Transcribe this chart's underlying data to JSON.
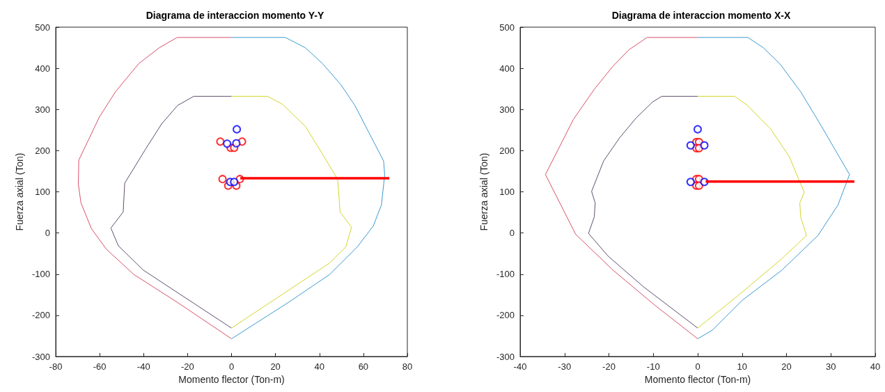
{
  "chart_data": [
    {
      "type": "line",
      "title": "Diagrama de interaccion momento Y-Y",
      "xlabel": "Momento flector (Ton-m)",
      "ylabel": "Fuerza axial (Ton)",
      "xlim": [
        -80,
        80
      ],
      "xticks": [
        -80,
        -60,
        -40,
        -20,
        0,
        20,
        40,
        60,
        80
      ],
      "ylim": [
        -300,
        500
      ],
      "yticks": [
        -300,
        -200,
        -100,
        0,
        100,
        200,
        300,
        400,
        500
      ],
      "marker": "none",
      "line_style": "solid",
      "series": [
        {
          "color": "#d9506a",
          "x": [
            0,
            -24.7,
            -32.9,
            -42.3,
            -52.8,
            -60.1,
            -69.5,
            -69.7,
            -68.5,
            -63.8,
            -57,
            -44.4,
            -24.5,
            0
          ],
          "values": [
            475,
            475,
            450,
            411,
            343,
            282,
            177,
            118,
            73,
            11,
            -39,
            -101,
            -169,
            -257
          ]
        },
        {
          "color": "#3a9ad0",
          "x": [
            0,
            24.5,
            33.6,
            41.5,
            49.8,
            56.1,
            69.2,
            69.7,
            68.2,
            64.5,
            57.2,
            44.6,
            25.8,
            0
          ],
          "values": [
            475,
            475,
            450,
            411,
            360,
            310,
            175,
            141,
            68,
            17,
            -34,
            -101,
            -169,
            -257
          ]
        },
        {
          "color": "#5e4f6e",
          "x": [
            0,
            -17.2,
            -24.5,
            -31.8,
            -39.2,
            -48.6,
            -49.3,
            -54.9,
            -51.5,
            -40.2,
            0
          ],
          "values": [
            332,
            332,
            310,
            265,
            203,
            121,
            51,
            12,
            -31,
            -90,
            -231
          ]
        },
        {
          "color": "#d4d42a",
          "x": [
            0,
            16.3,
            23.1,
            33.6,
            41.5,
            48.3,
            49.4,
            54.6,
            52,
            44.6,
            0
          ],
          "values": [
            332,
            332,
            313,
            259,
            191,
            130,
            51,
            14,
            -34,
            -73,
            -231
          ]
        },
        {
          "type": "scatter",
          "marker": "circle",
          "color": "#ff0000",
          "x": [
            -5.1,
            4.8,
            -0.4,
            1.2,
            -4.1,
            3.8,
            -1.5,
            2.2
          ],
          "values": [
            222,
            222,
            207,
            207,
            131,
            131,
            115,
            115
          ]
        },
        {
          "type": "scatter",
          "marker": "circle",
          "color": "#0000ff",
          "x": [
            2.4,
            -2,
            2.2,
            -0.6,
            1.2
          ],
          "values": [
            252,
            217,
            218,
            124,
            124
          ]
        },
        {
          "color": "#ff0000",
          "x": [
            4,
            71.8
          ],
          "values": [
            133,
            133
          ]
        }
      ]
    },
    {
      "type": "line",
      "title": "Diagrama de interaccion momento X-X",
      "xlabel": "Momento flector (Ton-m)",
      "ylabel": "Fuerza axial (Ton)",
      "xlim": [
        -40,
        40
      ],
      "xticks": [
        -40,
        -30,
        -20,
        -10,
        0,
        10,
        20,
        30,
        40
      ],
      "ylim": [
        -300,
        500
      ],
      "yticks": [
        -300,
        -200,
        -100,
        0,
        100,
        200,
        300,
        400,
        500
      ],
      "marker": "none",
      "line_style": "solid",
      "series": [
        {
          "color": "#d9506a",
          "x": [
            0,
            -11.4,
            -15.5,
            -19.1,
            -23.3,
            -28,
            -34.3,
            -27.5,
            -19.1,
            -9.7,
            0
          ],
          "values": [
            475,
            475,
            445,
            405,
            349,
            276,
            142,
            -3,
            -90,
            -175,
            -257
          ]
        },
        {
          "color": "#3a9ad0",
          "x": [
            0,
            11.3,
            14.8,
            18.5,
            23.2,
            27.9,
            34.2,
            31.6,
            27.1,
            19,
            10.1,
            3.3,
            0
          ],
          "values": [
            475,
            475,
            450,
            411,
            343,
            259,
            142,
            68,
            -6,
            -90,
            -163,
            -236,
            -257
          ]
        },
        {
          "color": "#5e4f6e",
          "x": [
            0,
            -8.1,
            -10.2,
            -13.9,
            -17.6,
            -21.2,
            -23.9,
            -23.1,
            -23.3,
            -24.6,
            -20.2,
            -12.3,
            0
          ],
          "values": [
            332,
            332,
            318,
            279,
            231,
            175,
            101,
            73,
            39,
            -1,
            -56,
            -130,
            -231
          ]
        },
        {
          "color": "#d4d42a",
          "x": [
            0,
            8.3,
            11.2,
            16.4,
            20.6,
            24,
            23,
            23.2,
            24.5,
            19,
            9.1,
            0
          ],
          "values": [
            332,
            332,
            310,
            253,
            186,
            99,
            73,
            39,
            -6,
            -62,
            -152,
            -231
          ]
        },
        {
          "type": "scatter",
          "marker": "circle",
          "color": "#ff0000",
          "x": [
            -0.3,
            0.3,
            -0.3,
            0.3,
            -0.3,
            0.3,
            -0.3,
            0.3
          ],
          "values": [
            221,
            221,
            206,
            206,
            131,
            131,
            115,
            115
          ]
        },
        {
          "type": "scatter",
          "marker": "circle",
          "color": "#0000ff",
          "x": [
            0,
            -1.6,
            1.5,
            -1.6,
            1.5
          ],
          "values": [
            252,
            213,
            213,
            124,
            124
          ]
        },
        {
          "color": "#ff0000",
          "x": [
            1.8,
            35.3
          ],
          "values": [
            125,
            125
          ]
        }
      ]
    }
  ]
}
